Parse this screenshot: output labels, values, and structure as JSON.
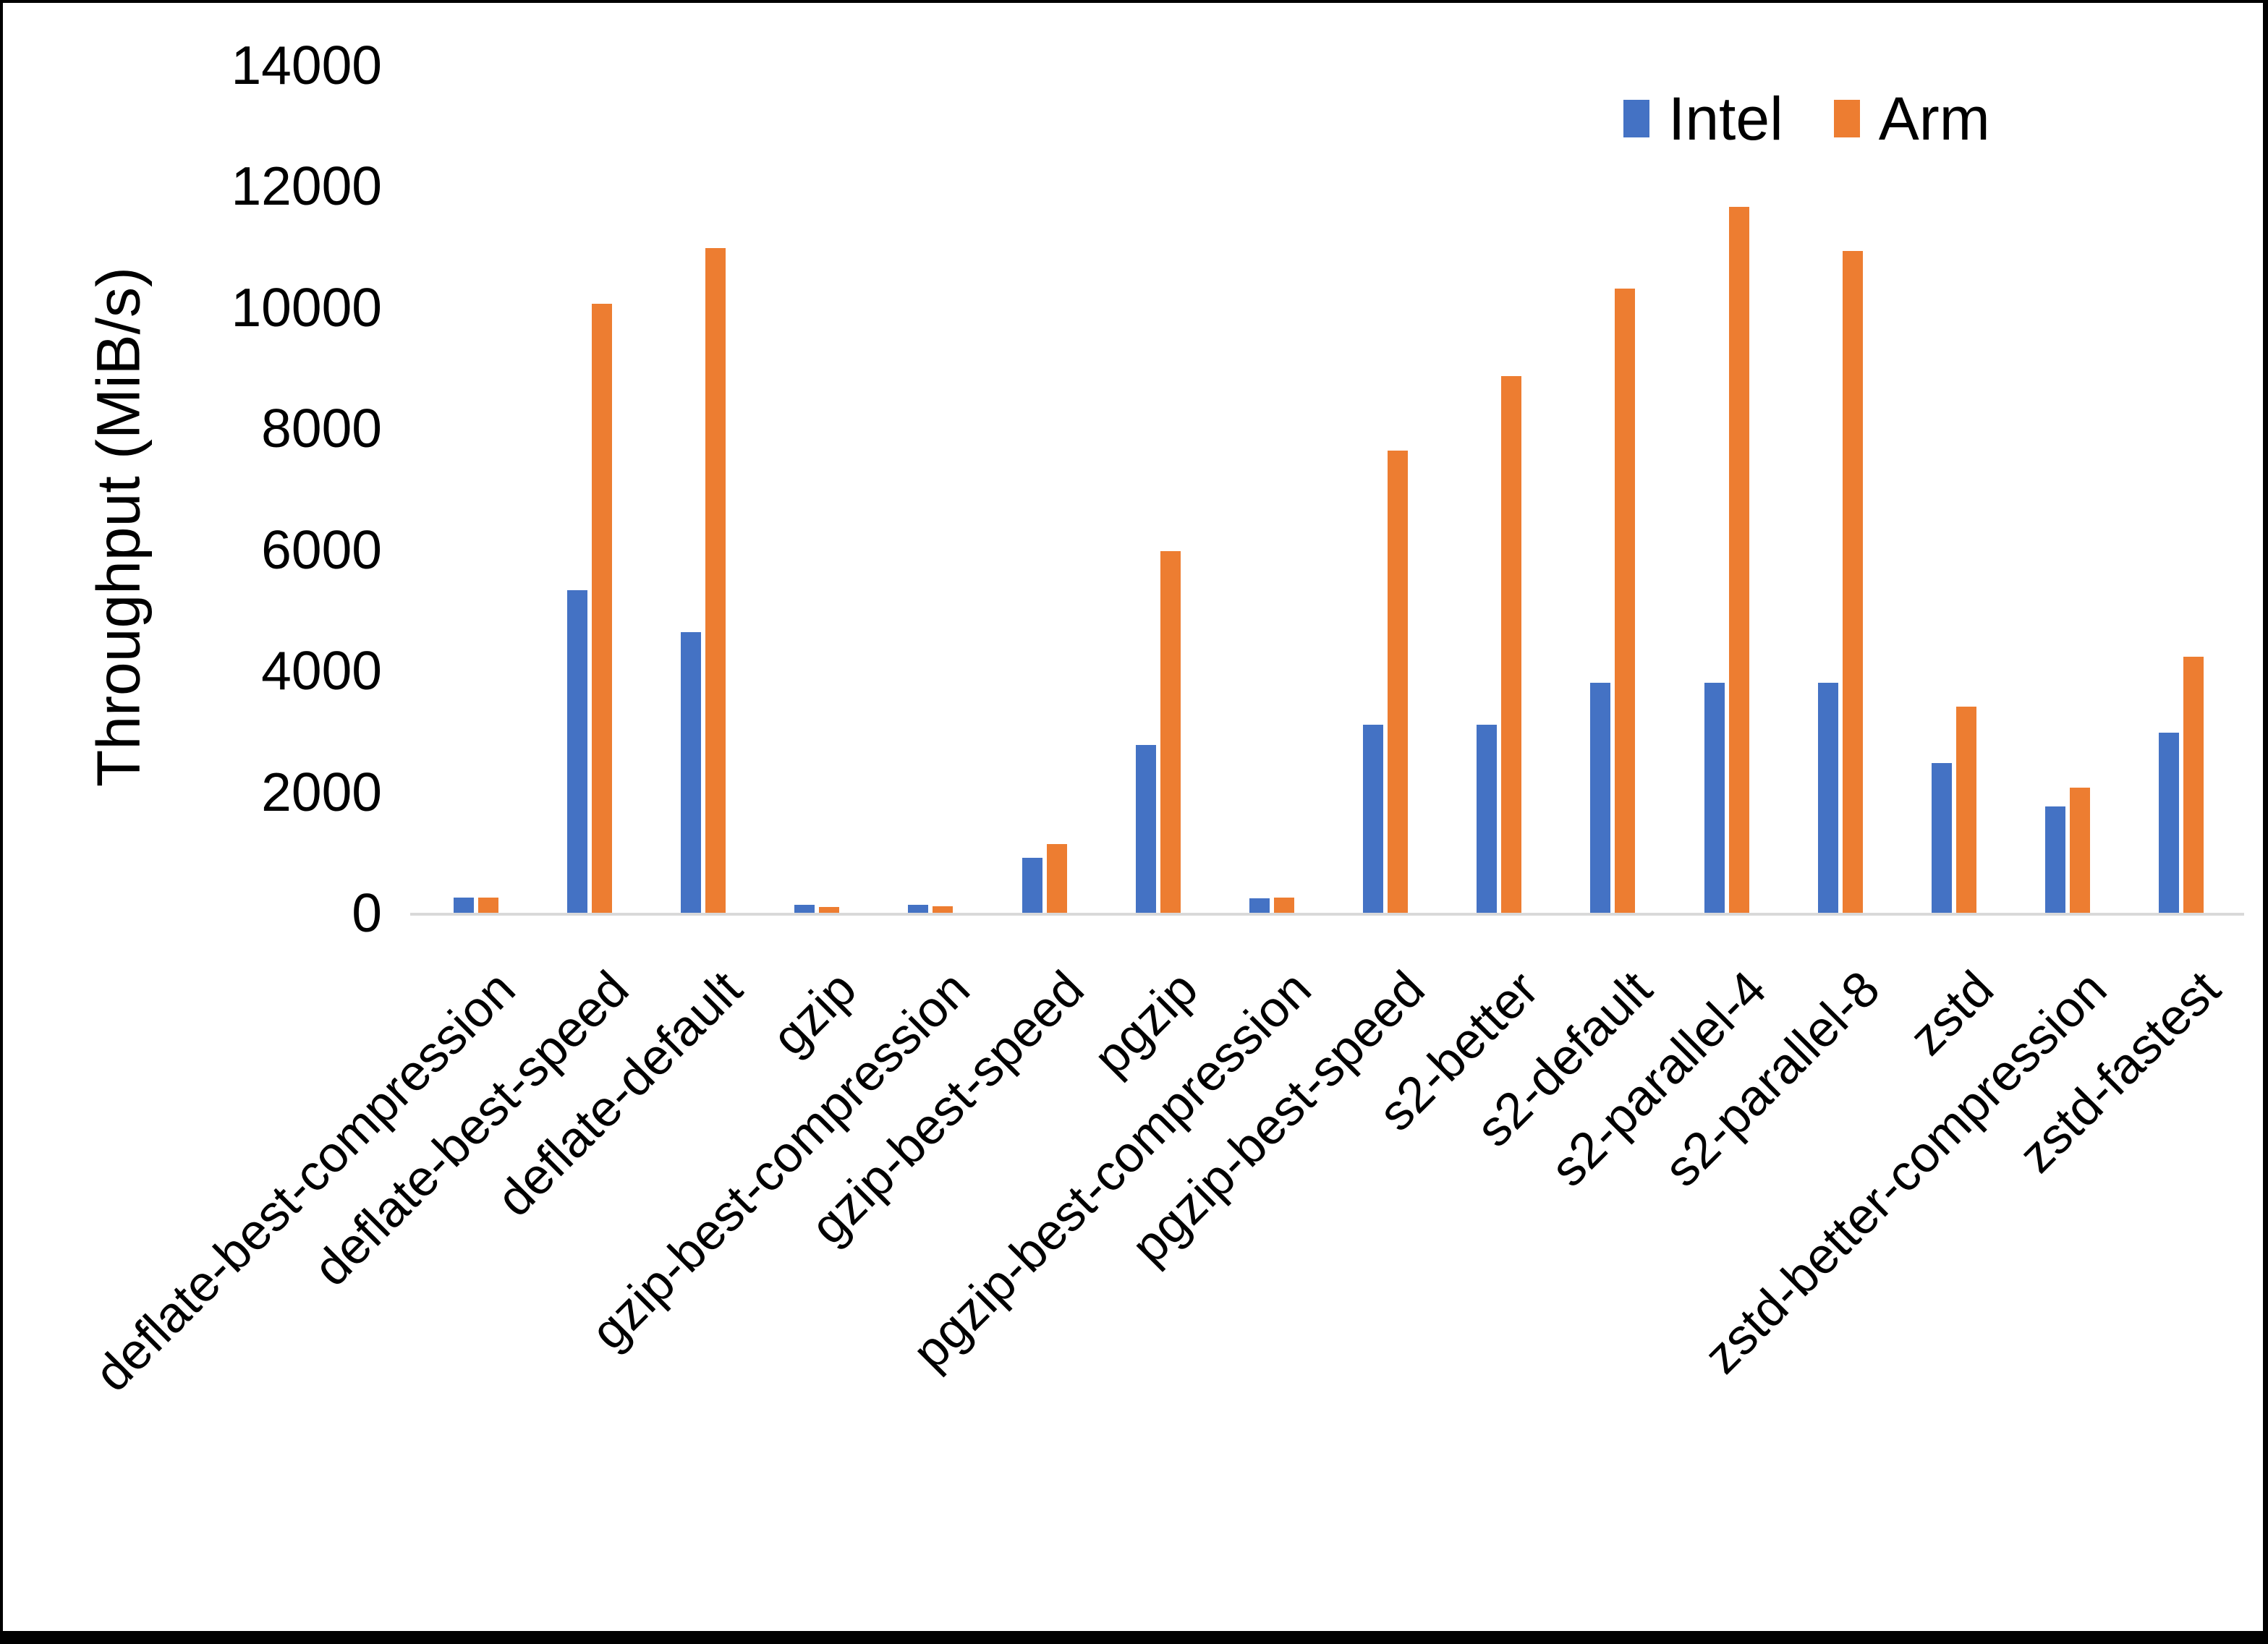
{
  "chart_data": {
    "type": "bar",
    "title": "",
    "xlabel": "",
    "ylabel": "Throughput (MiB/s)",
    "ylim": [
      0,
      14000
    ],
    "ytick_step": 2000,
    "yticks": [
      0,
      2000,
      4000,
      6000,
      8000,
      10000,
      12000,
      14000
    ],
    "grid": false,
    "legend_position": "top-right",
    "categories": [
      "deflate-best-compression",
      "deflate-best-speed",
      "deflate-default",
      "gzip",
      "gzip-best-compression",
      "gzip-best-speed",
      "pgzip",
      "pgzip-best-compression",
      "pgzip-best-speed",
      "s2-better",
      "s2-default",
      "s2-parallel-4",
      "s2-parallel-8",
      "zstd",
      "zstd-better-compression",
      "zstd-fastest"
    ],
    "series": [
      {
        "name": "Intel",
        "color": "#4472C4",
        "values": [
          250,
          5320,
          4630,
          130,
          130,
          910,
          2770,
          240,
          3100,
          3100,
          3800,
          3800,
          3800,
          2470,
          1750,
          2970
        ]
      },
      {
        "name": "Arm",
        "color": "#ED7D31",
        "values": [
          250,
          10050,
          10970,
          100,
          105,
          1130,
          5970,
          255,
          7630,
          8860,
          10300,
          11650,
          10930,
          3400,
          2060,
          4230
        ]
      }
    ]
  },
  "legend": {
    "items": [
      {
        "label": "Intel",
        "color": "#4472C4"
      },
      {
        "label": "Arm",
        "color": "#ED7D31"
      }
    ]
  },
  "axis": {
    "line_color": "#D9D9D9",
    "text_color": "#000000"
  }
}
